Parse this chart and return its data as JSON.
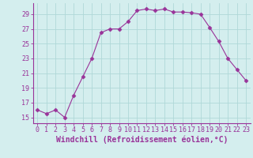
{
  "x": [
    0,
    1,
    2,
    3,
    4,
    5,
    6,
    7,
    8,
    9,
    10,
    11,
    12,
    13,
    14,
    15,
    16,
    17,
    18,
    19,
    20,
    21,
    22,
    23
  ],
  "y": [
    16.0,
    15.5,
    16.0,
    15.0,
    18.0,
    20.5,
    23.0,
    26.5,
    27.0,
    27.0,
    28.0,
    29.5,
    29.7,
    29.5,
    29.7,
    29.3,
    29.3,
    29.2,
    29.0,
    27.2,
    25.3,
    23.0,
    21.5,
    20.0
  ],
  "line_color": "#993399",
  "marker": "D",
  "markersize": 2.5,
  "linewidth": 0.8,
  "bg_color": "#d4eeee",
  "grid_color": "#b0d8d8",
  "xlabel": "Windchill (Refroidissement éolien,°C)",
  "xlabel_fontsize": 7,
  "ylabel_ticks": [
    15,
    17,
    19,
    21,
    23,
    25,
    27,
    29
  ],
  "xlim": [
    -0.5,
    23.5
  ],
  "ylim": [
    14.2,
    30.5
  ],
  "xtick_labels": [
    "0",
    "1",
    "2",
    "3",
    "4",
    "5",
    "6",
    "7",
    "8",
    "9",
    "10",
    "11",
    "12",
    "13",
    "14",
    "15",
    "16",
    "17",
    "18",
    "19",
    "20",
    "21",
    "22",
    "23"
  ],
  "tick_fontsize": 6,
  "font_family": "monospace"
}
